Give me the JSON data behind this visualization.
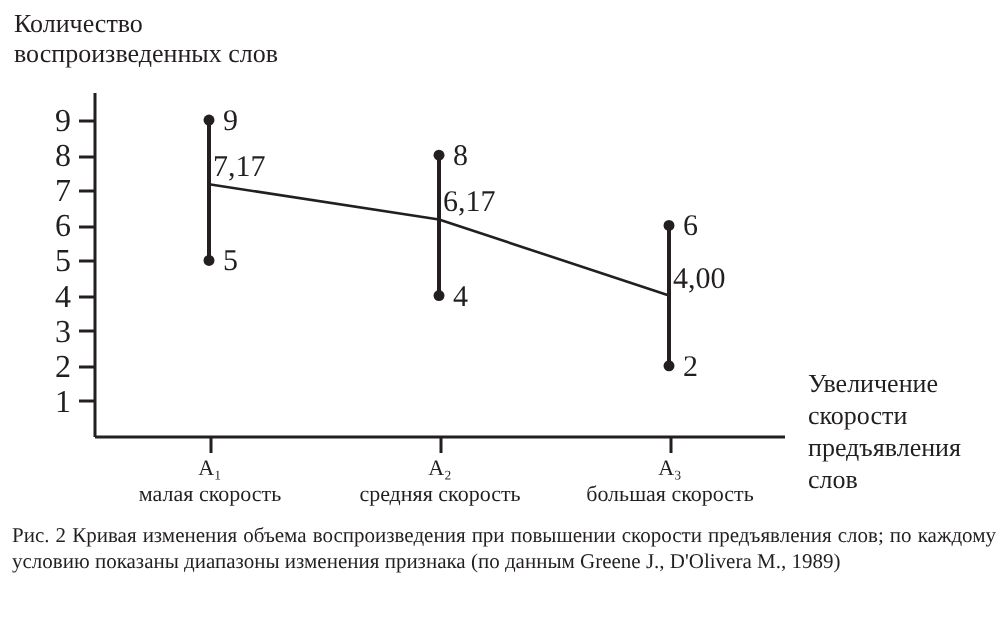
{
  "chart_data": {
    "type": "line",
    "ylabel": "Количество воспроизведенных слов",
    "xlabel": "Увеличение скорости предъявления слов",
    "categories": [
      "A₁ малая скорость",
      "A₂ средняя скорость",
      "A₃ большая скорость"
    ],
    "series": [
      {
        "color": "#231f20",
        "values": [
          7.17,
          6.17,
          4.0
        ],
        "errors": [
          [
            5,
            9
          ],
          [
            4,
            8
          ],
          [
            2,
            6
          ]
        ],
        "value_labels": [
          "7,17",
          "6,17",
          "4,00"
        ]
      },
      {
        "type": "scatter",
        "color": "#231f20",
        "x": [
          "A₁ малая скорость",
          "A₁ малая скорость",
          "A₂ средняя скорость",
          "A₂ средняя скорость",
          "A₃ большая скорость",
          "A₃ большая скорость"
        ],
        "values": [
          9,
          5,
          8,
          4,
          6,
          2
        ],
        "value_labels": [
          "9",
          "5",
          "8",
          "4",
          "6",
          "2"
        ]
      }
    ],
    "ylim": [
      0,
      9.8
    ],
    "yticks": [
      1,
      2,
      3,
      4,
      5,
      6,
      7,
      8,
      9
    ],
    "annotations": [
      "Рис. 2  Кривая изменения объема воспроизведения при повышении скорости предъявления слов; по каждому условию показаны диапазоны изменения признака (по данным Greene J., D'Olivera M., 1989)"
    ]
  }
}
